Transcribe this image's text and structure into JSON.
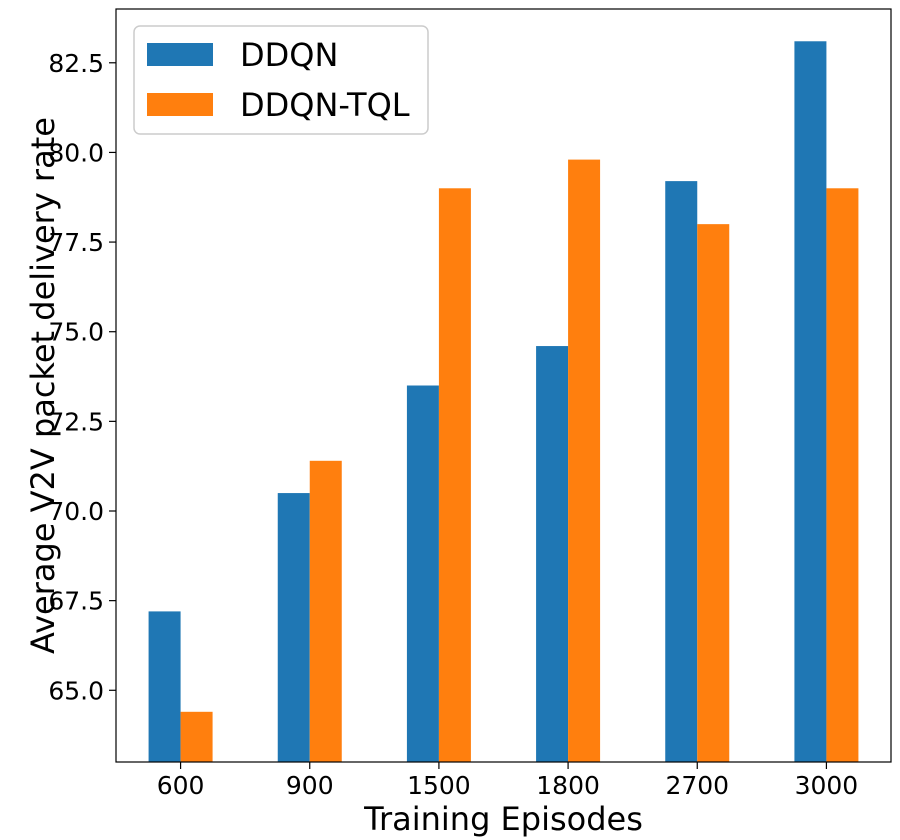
{
  "chart_data": {
    "type": "bar",
    "title": "",
    "categories": [
      "600",
      "900",
      "1500",
      "1800",
      "2700",
      "3000"
    ],
    "series": [
      {
        "name": "DDQN",
        "color": "#1f77b4",
        "values": [
          67.2,
          70.5,
          73.5,
          74.6,
          79.2,
          83.1
        ]
      },
      {
        "name": "DDQN-TQL",
        "color": "#ff7f0e",
        "values": [
          64.4,
          71.4,
          79.0,
          79.8,
          78.0,
          79.0
        ]
      }
    ],
    "xlabel": "Training Episodes",
    "ylabel": "Average V2V packet delivery rate",
    "ylim": [
      63.0,
      84.0
    ],
    "yticks": [
      65.0,
      67.5,
      70.0,
      72.5,
      75.0,
      77.5,
      80.0,
      82.5
    ],
    "ytick_labels": [
      "65.0",
      "67.5",
      "70.0",
      "72.5",
      "75.0",
      "77.5",
      "80.0",
      "82.5"
    ],
    "legend_position": "top-left",
    "grid": false
  }
}
